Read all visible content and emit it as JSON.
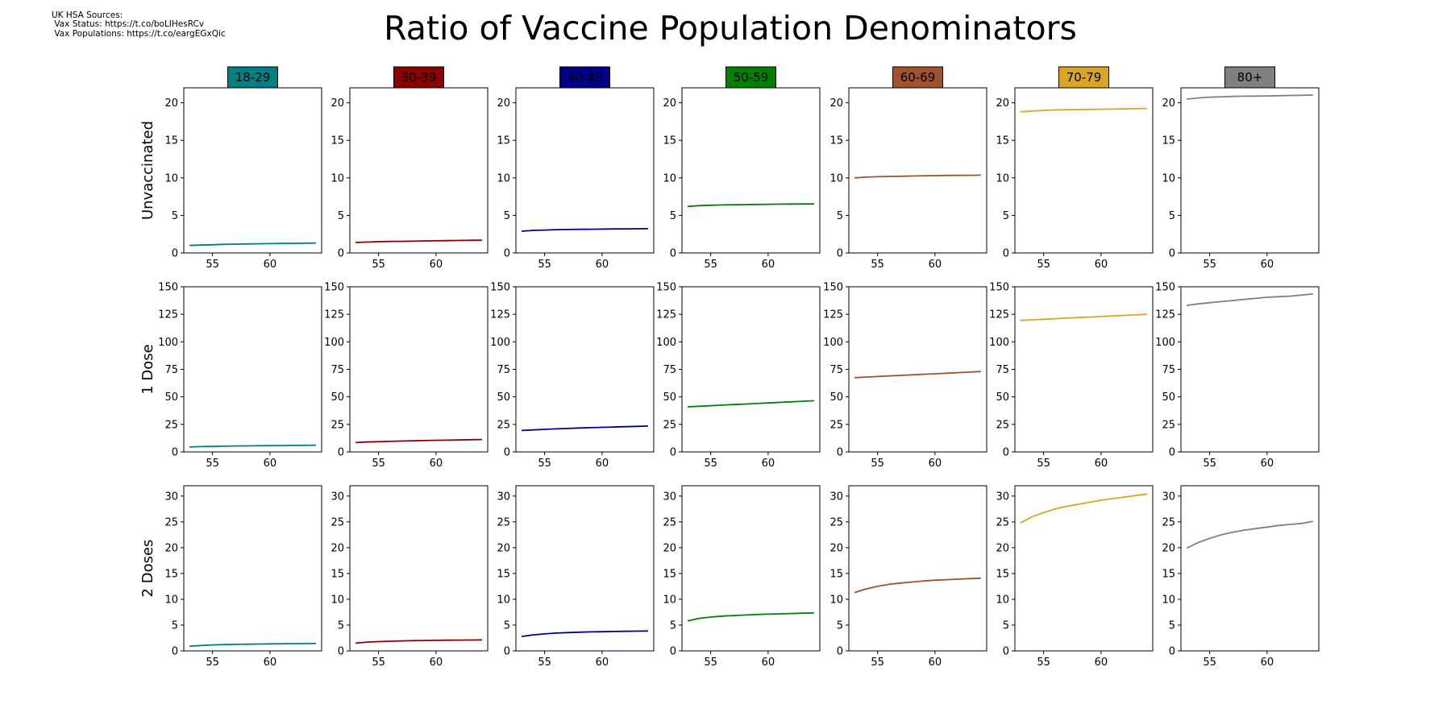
{
  "sources": {
    "header": "UK HSA Sources:",
    "vax_status": " Vax Status: https://t.co/boLIHesRCv",
    "vax_populations": " Vax Populations: https://t.co/eargEGxQic"
  },
  "title": "Ratio of Vaccine Population Denominators",
  "chart_data": {
    "type": "line",
    "layout": "small-multiples grid: rows = vaccination status, columns = age group",
    "grid": false,
    "x": [
      53,
      54,
      55,
      56,
      57,
      58,
      59,
      60,
      61,
      62,
      63,
      64
    ],
    "x_ticks": [
      55,
      60
    ],
    "xlim": [
      52.5,
      64.5
    ],
    "rows": [
      {
        "label": "Unvaccinated",
        "ylim": [
          0,
          22
        ],
        "y_ticks": [
          0,
          5,
          10,
          15,
          20
        ]
      },
      {
        "label": "1 Dose",
        "ylim": [
          0,
          150
        ],
        "y_ticks": [
          0,
          25,
          50,
          75,
          100,
          125,
          150
        ]
      },
      {
        "label": "2 Doses",
        "ylim": [
          0,
          32
        ],
        "y_ticks": [
          0,
          5,
          10,
          15,
          20,
          25,
          30
        ]
      }
    ],
    "columns": [
      {
        "label": "18-29",
        "color": "#008080"
      },
      {
        "label": "30-39",
        "color": "#8b0000"
      },
      {
        "label": "40-49",
        "color": "#00008b"
      },
      {
        "label": "50-59",
        "color": "#008000"
      },
      {
        "label": "60-69",
        "color": "#a0522d"
      },
      {
        "label": "70-79",
        "color": "#daa520"
      },
      {
        "label": "80+",
        "color": "#808080"
      }
    ],
    "series": [
      [
        [
          1.0,
          1.05,
          1.1,
          1.15,
          1.17,
          1.2,
          1.22,
          1.25,
          1.27,
          1.28,
          1.3,
          1.32
        ],
        [
          1.4,
          1.45,
          1.5,
          1.53,
          1.55,
          1.57,
          1.6,
          1.62,
          1.64,
          1.66,
          1.68,
          1.7
        ],
        [
          2.9,
          3.0,
          3.05,
          3.1,
          3.12,
          3.14,
          3.16,
          3.18,
          3.2,
          3.21,
          3.22,
          3.23
        ],
        [
          6.2,
          6.3,
          6.35,
          6.4,
          6.42,
          6.44,
          6.46,
          6.48,
          6.5,
          6.51,
          6.52,
          6.53
        ],
        [
          10.0,
          10.1,
          10.15,
          10.2,
          10.22,
          10.25,
          10.28,
          10.3,
          10.32,
          10.34,
          10.35,
          10.37
        ],
        [
          18.8,
          18.9,
          19.0,
          19.05,
          19.08,
          19.1,
          19.12,
          19.15,
          19.17,
          19.2,
          19.22,
          19.25
        ],
        [
          20.5,
          20.65,
          20.75,
          20.8,
          20.85,
          20.88,
          20.9,
          20.92,
          20.95,
          20.98,
          21.0,
          21.05
        ]
      ],
      [
        [
          4.5,
          4.8,
          5.0,
          5.2,
          5.4,
          5.5,
          5.6,
          5.7,
          5.8,
          5.9,
          6.0,
          6.1
        ],
        [
          8.5,
          9.0,
          9.3,
          9.6,
          9.9,
          10.1,
          10.3,
          10.5,
          10.7,
          10.9,
          11.1,
          11.3
        ],
        [
          19.5,
          20.0,
          20.5,
          20.9,
          21.3,
          21.7,
          22.0,
          22.3,
          22.6,
          22.9,
          23.2,
          23.5
        ],
        [
          41.0,
          41.5,
          42.0,
          42.5,
          43.0,
          43.5,
          44.0,
          44.5,
          45.0,
          45.5,
          46.0,
          46.5
        ],
        [
          67.5,
          68.0,
          68.5,
          69.0,
          69.5,
          70.0,
          70.5,
          71.0,
          71.5,
          72.0,
          72.5,
          73.0
        ],
        [
          119.5,
          120.0,
          120.5,
          121.0,
          121.5,
          122.0,
          122.5,
          123.0,
          123.5,
          124.0,
          124.5,
          125.0
        ],
        [
          133.0,
          134.5,
          135.5,
          136.5,
          137.5,
          138.5,
          139.5,
          140.5,
          141.0,
          141.5,
          142.5,
          143.5
        ]
      ],
      [
        [
          0.9,
          1.05,
          1.15,
          1.22,
          1.27,
          1.3,
          1.33,
          1.36,
          1.38,
          1.4,
          1.42,
          1.43
        ],
        [
          1.5,
          1.7,
          1.8,
          1.88,
          1.93,
          1.98,
          2.02,
          2.05,
          2.07,
          2.09,
          2.1,
          2.12
        ],
        [
          2.8,
          3.1,
          3.3,
          3.45,
          3.55,
          3.62,
          3.68,
          3.72,
          3.76,
          3.79,
          3.82,
          3.85
        ],
        [
          5.8,
          6.3,
          6.55,
          6.75,
          6.85,
          6.95,
          7.05,
          7.12,
          7.18,
          7.25,
          7.3,
          7.35
        ],
        [
          11.3,
          12.0,
          12.5,
          12.9,
          13.15,
          13.35,
          13.55,
          13.7,
          13.8,
          13.9,
          14.0,
          14.1
        ],
        [
          24.8,
          26.0,
          26.8,
          27.5,
          28.0,
          28.4,
          28.8,
          29.2,
          29.5,
          29.8,
          30.1,
          30.4
        ],
        [
          19.9,
          21.0,
          21.8,
          22.5,
          23.0,
          23.4,
          23.7,
          24.0,
          24.3,
          24.5,
          24.7,
          25.1
        ]
      ]
    ]
  }
}
